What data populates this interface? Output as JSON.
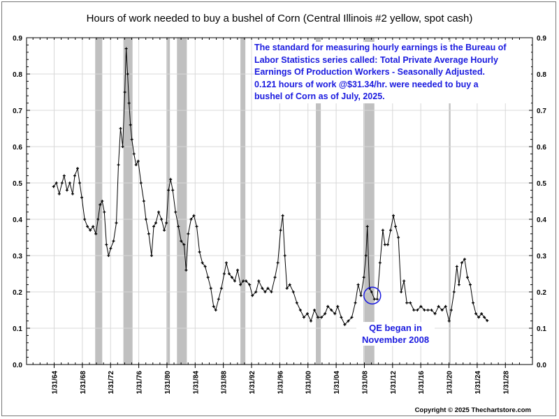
{
  "chart_data": {
    "type": "line",
    "title": "Hours of work needed to buy a bushel of Corn (Central Illinois #2 yellow, spot cash)",
    "xlabel": "",
    "ylabel": "",
    "ylim": [
      0,
      0.9
    ],
    "y_ticks": [
      "0.0",
      "0.1",
      "0.2",
      "0.3",
      "0.4",
      "0.5",
      "0.6",
      "0.7",
      "0.8",
      "0.9"
    ],
    "x_ticks": [
      "1/31/64",
      "1/31/68",
      "1/31/72",
      "1/31/76",
      "1/31/80",
      "1/31/84",
      "1/31/88",
      "1/31/92",
      "1/31/96",
      "1/31/00",
      "1/31/04",
      "1/31/08",
      "1/31/12",
      "1/31/16",
      "1/31/20",
      "1/31/24",
      "1/31/28"
    ],
    "grid": true,
    "y_axis": "both sides",
    "series_color": "#000000",
    "recession_color": "#c0c0c0",
    "recessions": [
      [
        1969.9,
        1970.9
      ],
      [
        1973.9,
        1975.2
      ],
      [
        1980.0,
        1980.5
      ],
      [
        1981.5,
        1982.9
      ],
      [
        1990.5,
        1991.2
      ],
      [
        2001.2,
        2001.9
      ],
      [
        2007.95,
        2009.5
      ],
      [
        2020.1,
        2020.3
      ]
    ],
    "series": [
      {
        "x": [
          1964.0,
          1964.4,
          1964.8,
          1965.2,
          1965.5,
          1965.9,
          1966.3,
          1966.7,
          1967.0,
          1967.4,
          1967.7,
          1968.0,
          1968.4,
          1968.8,
          1969.2,
          1969.6,
          1970.0,
          1970.3,
          1970.6,
          1970.9,
          1971.2,
          1971.5,
          1971.8,
          1972.1,
          1972.5,
          1972.9,
          1973.2,
          1973.5,
          1973.8,
          1974.1,
          1974.3,
          1974.5,
          1974.7,
          1974.9,
          1975.1,
          1975.4,
          1975.7,
          1976.0,
          1976.4,
          1976.8,
          1977.1,
          1977.5,
          1977.9,
          1978.2,
          1978.5,
          1978.9,
          1979.3,
          1979.7,
          1980.0,
          1980.3,
          1980.6,
          1980.9,
          1981.3,
          1981.7,
          1982.1,
          1982.5,
          1982.8,
          1983.1,
          1983.5,
          1983.9,
          1984.3,
          1984.7,
          1985.1,
          1985.5,
          1985.9,
          1986.3,
          1986.7,
          1987.0,
          1987.4,
          1987.8,
          1988.2,
          1988.5,
          1988.9,
          1989.3,
          1989.7,
          1990.1,
          1990.5,
          1990.9,
          1991.3,
          1991.8,
          1992.2,
          1992.7,
          1993.1,
          1993.6,
          1994.0,
          1994.4,
          1994.9,
          1995.4,
          1995.8,
          1996.2,
          1996.5,
          1996.8,
          1997.1,
          1997.5,
          1998.0,
          1998.5,
          1999.0,
          1999.5,
          2000.0,
          2000.5,
          2001.0,
          2001.5,
          2002.0,
          2002.5,
          2002.9,
          2003.4,
          2003.9,
          2004.3,
          2004.8,
          2005.3,
          2005.8,
          2006.3,
          2006.8,
          2007.2,
          2007.6,
          2008.0,
          2008.3,
          2008.5,
          2008.8,
          2009.1,
          2009.5,
          2009.9,
          2010.3,
          2010.7,
          2011.0,
          2011.4,
          2011.8,
          2012.2,
          2012.5,
          2012.9,
          2013.3,
          2013.7,
          2014.1,
          2014.6,
          2015.1,
          2015.6,
          2016.1,
          2016.6,
          2017.1,
          2017.6,
          2018.1,
          2018.6,
          2019.1,
          2019.6,
          2020.1,
          2020.4,
          2020.8,
          2021.2,
          2021.5,
          2021.9,
          2022.3,
          2022.7,
          2023.1,
          2023.5,
          2023.9,
          2024.3,
          2024.7,
          2025.1,
          2025.5
        ],
        "y": [
          0.49,
          0.5,
          0.47,
          0.5,
          0.52,
          0.48,
          0.5,
          0.47,
          0.52,
          0.54,
          0.5,
          0.46,
          0.4,
          0.38,
          0.37,
          0.38,
          0.36,
          0.4,
          0.44,
          0.45,
          0.42,
          0.33,
          0.3,
          0.32,
          0.34,
          0.39,
          0.55,
          0.65,
          0.6,
          0.75,
          0.87,
          0.8,
          0.72,
          0.66,
          0.62,
          0.58,
          0.55,
          0.56,
          0.5,
          0.45,
          0.4,
          0.36,
          0.3,
          0.38,
          0.39,
          0.42,
          0.4,
          0.37,
          0.39,
          0.48,
          0.51,
          0.48,
          0.42,
          0.38,
          0.34,
          0.33,
          0.26,
          0.36,
          0.4,
          0.41,
          0.38,
          0.31,
          0.28,
          0.27,
          0.24,
          0.21,
          0.16,
          0.15,
          0.18,
          0.21,
          0.25,
          0.28,
          0.25,
          0.24,
          0.23,
          0.26,
          0.22,
          0.23,
          0.23,
          0.22,
          0.19,
          0.2,
          0.23,
          0.21,
          0.2,
          0.21,
          0.2,
          0.24,
          0.28,
          0.37,
          0.41,
          0.3,
          0.21,
          0.22,
          0.2,
          0.17,
          0.15,
          0.13,
          0.14,
          0.12,
          0.15,
          0.13,
          0.13,
          0.14,
          0.16,
          0.15,
          0.14,
          0.16,
          0.13,
          0.11,
          0.12,
          0.13,
          0.17,
          0.22,
          0.19,
          0.24,
          0.3,
          0.38,
          0.21,
          0.2,
          0.18,
          0.18,
          0.28,
          0.37,
          0.33,
          0.33,
          0.37,
          0.41,
          0.38,
          0.35,
          0.2,
          0.23,
          0.17,
          0.17,
          0.15,
          0.15,
          0.16,
          0.15,
          0.15,
          0.15,
          0.14,
          0.16,
          0.15,
          0.16,
          0.12,
          0.15,
          0.2,
          0.27,
          0.22,
          0.28,
          0.29,
          0.24,
          0.22,
          0.17,
          0.14,
          0.13,
          0.14,
          0.13,
          0.121
        ]
      }
    ]
  },
  "annotations": {
    "note_lines": [
      "The standard for measuring hourly earnings is the Bureau of",
      "Labor Statistics series called:  Total Private Average Hourly",
      "Earnings Of Production Workers - Seasonally Adjusted.",
      "0.121 hours of work @$31.34/hr. were needed to buy a",
      "bushel of Corn as of July, 2025."
    ],
    "qe_line1": "QE began in",
    "qe_line2": "November 2008",
    "qe_marker_year": 2009.2,
    "qe_marker_value": 0.19,
    "color": "#1a1adf"
  },
  "copyright": "Copyright © 2025 Thechartstore.com"
}
